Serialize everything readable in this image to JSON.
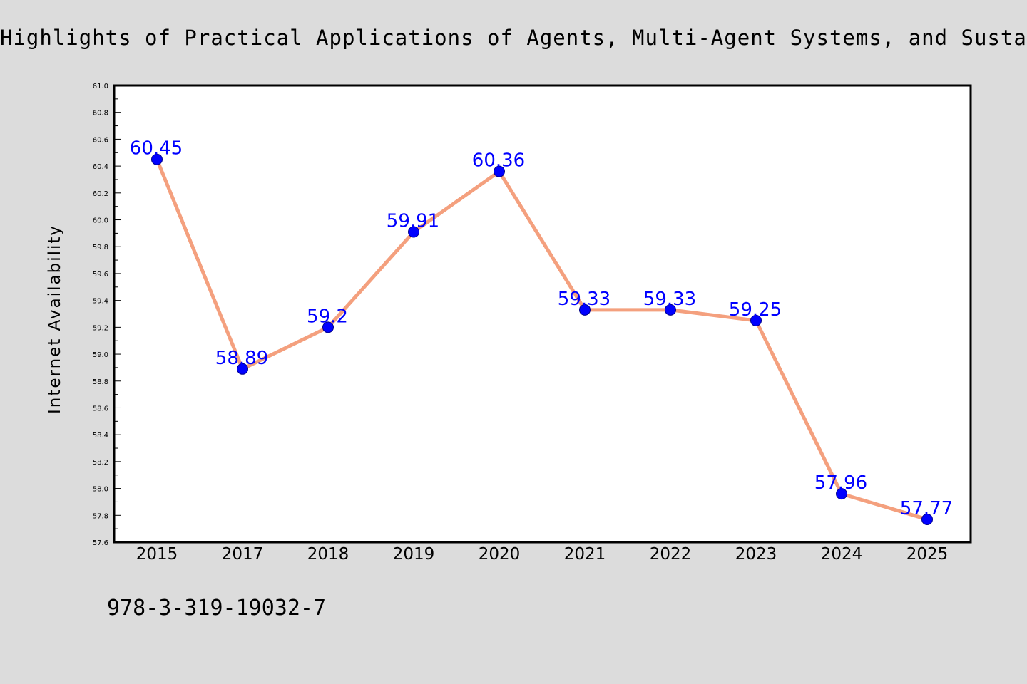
{
  "chart_data": {
    "type": "line",
    "title": "Highlights of Practical Applications of Agents, Multi-Agent Systems, and Sustain",
    "xlabel": "",
    "ylabel": "Internet Availability",
    "categories": [
      "2015",
      "2017",
      "2018",
      "2019",
      "2020",
      "2021",
      "2022",
      "2023",
      "2024",
      "2025"
    ],
    "values": [
      60.45,
      58.89,
      59.2,
      59.91,
      60.36,
      59.33,
      59.33,
      59.25,
      57.96,
      57.77
    ],
    "data_labels": [
      "60.45",
      "58.89",
      "59.2",
      "59.91",
      "60.36",
      "59.33",
      "59.33",
      "59.25",
      "57.96",
      "57.77"
    ],
    "ylim": [
      57.6,
      61.0
    ],
    "yticks": [
      "57.6",
      "57.8",
      "58.0",
      "58.2",
      "58.4",
      "58.6",
      "58.8",
      "59.0",
      "59.2",
      "59.4",
      "59.6",
      "59.8",
      "60.0",
      "60.2",
      "60.4",
      "60.6",
      "60.8",
      "61.0"
    ],
    "grid": false,
    "line_color": "#f4a07e",
    "marker_color": "#0000ff",
    "label_color": "#0000ff"
  },
  "footer": {
    "isbn": "978-3-319-19032-7"
  }
}
